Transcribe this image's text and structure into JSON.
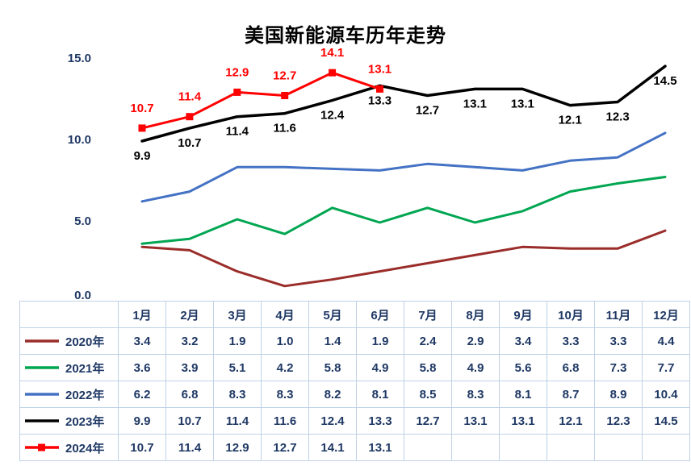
{
  "chart_data": {
    "type": "line",
    "title": "美国新能源车历年走势",
    "categories": [
      "1月",
      "2月",
      "3月",
      "4月",
      "5月",
      "6月",
      "7月",
      "8月",
      "9月",
      "10月",
      "11月",
      "12月"
    ],
    "ylim": [
      0,
      15
    ],
    "yticks": [
      0,
      5,
      10,
      15
    ],
    "grid": false,
    "legend_position": "table-left",
    "series": [
      {
        "name": "2020年",
        "color": "#9A2D2A",
        "values": [
          3.4,
          3.2,
          1.9,
          1.0,
          1.4,
          1.9,
          2.4,
          2.9,
          3.4,
          3.3,
          3.3,
          4.4
        ],
        "labels": false
      },
      {
        "name": "2021年",
        "color": "#00A651",
        "values": [
          3.6,
          3.9,
          5.1,
          4.2,
          5.8,
          4.9,
          5.8,
          4.9,
          5.6,
          6.8,
          7.3,
          7.7
        ],
        "labels": false
      },
      {
        "name": "2022年",
        "color": "#4472C4",
        "values": [
          6.2,
          6.8,
          8.3,
          8.3,
          8.2,
          8.1,
          8.5,
          8.3,
          8.1,
          8.7,
          8.9,
          10.4
        ],
        "labels": false
      },
      {
        "name": "2023年",
        "color": "#000000",
        "values": [
          9.9,
          10.7,
          11.4,
          11.6,
          12.4,
          13.3,
          12.7,
          13.1,
          13.1,
          12.1,
          12.3,
          14.5
        ],
        "labels": true,
        "label_pos": "below"
      },
      {
        "name": "2024年",
        "color": "#FF0000",
        "values": [
          10.7,
          11.4,
          12.9,
          12.7,
          14.1,
          13.1
        ],
        "labels": true,
        "label_pos": "above",
        "marker": "square"
      }
    ]
  },
  "colors": {
    "title_text": "#000000",
    "axis_text": "#1F3864",
    "table_text": "#1F3864",
    "table_border": "#BFD2E6",
    "background": "#FFFFFF"
  }
}
